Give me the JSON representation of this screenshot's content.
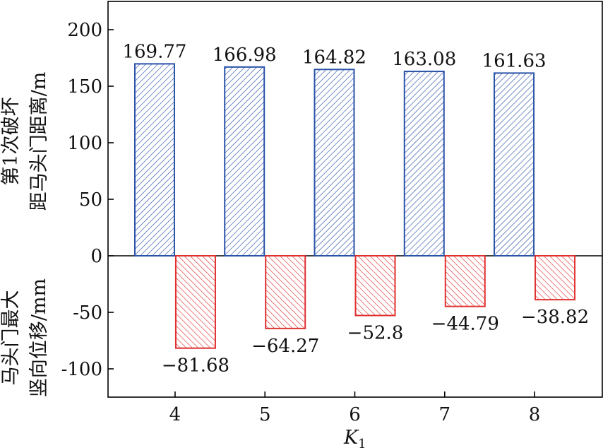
{
  "chart_data": {
    "type": "bar",
    "xlabel": "K",
    "xlabel_subscript": "1",
    "ylabel_upper": [
      "第1次破坏",
      "距马头门距离/m"
    ],
    "ylabel_lower": [
      "马头门最大",
      "竖向位移/mm"
    ],
    "categories": [
      "4",
      "5",
      "6",
      "7",
      "8"
    ],
    "ylim": [
      -125,
      225
    ],
    "yticks": [
      -100,
      -50,
      0,
      50,
      100,
      150,
      200
    ],
    "series": [
      {
        "values": [
          169.77,
          166.98,
          164.82,
          163.08,
          161.63
        ],
        "labels": [
          "169.77",
          "166.98",
          "164.82",
          "163.08",
          "161.63"
        ],
        "color": "#2a52a8",
        "hatch": "blue-diagonal"
      },
      {
        "values": [
          -81.68,
          -64.27,
          -52.8,
          -44.79,
          -38.82
        ],
        "labels": [
          "−81.68",
          "−64.27",
          "−52.8",
          "−44.79",
          "−38.82"
        ],
        "color": "#e03030",
        "hatch": "red-diagonal"
      }
    ],
    "grid": false,
    "legend": "none"
  }
}
